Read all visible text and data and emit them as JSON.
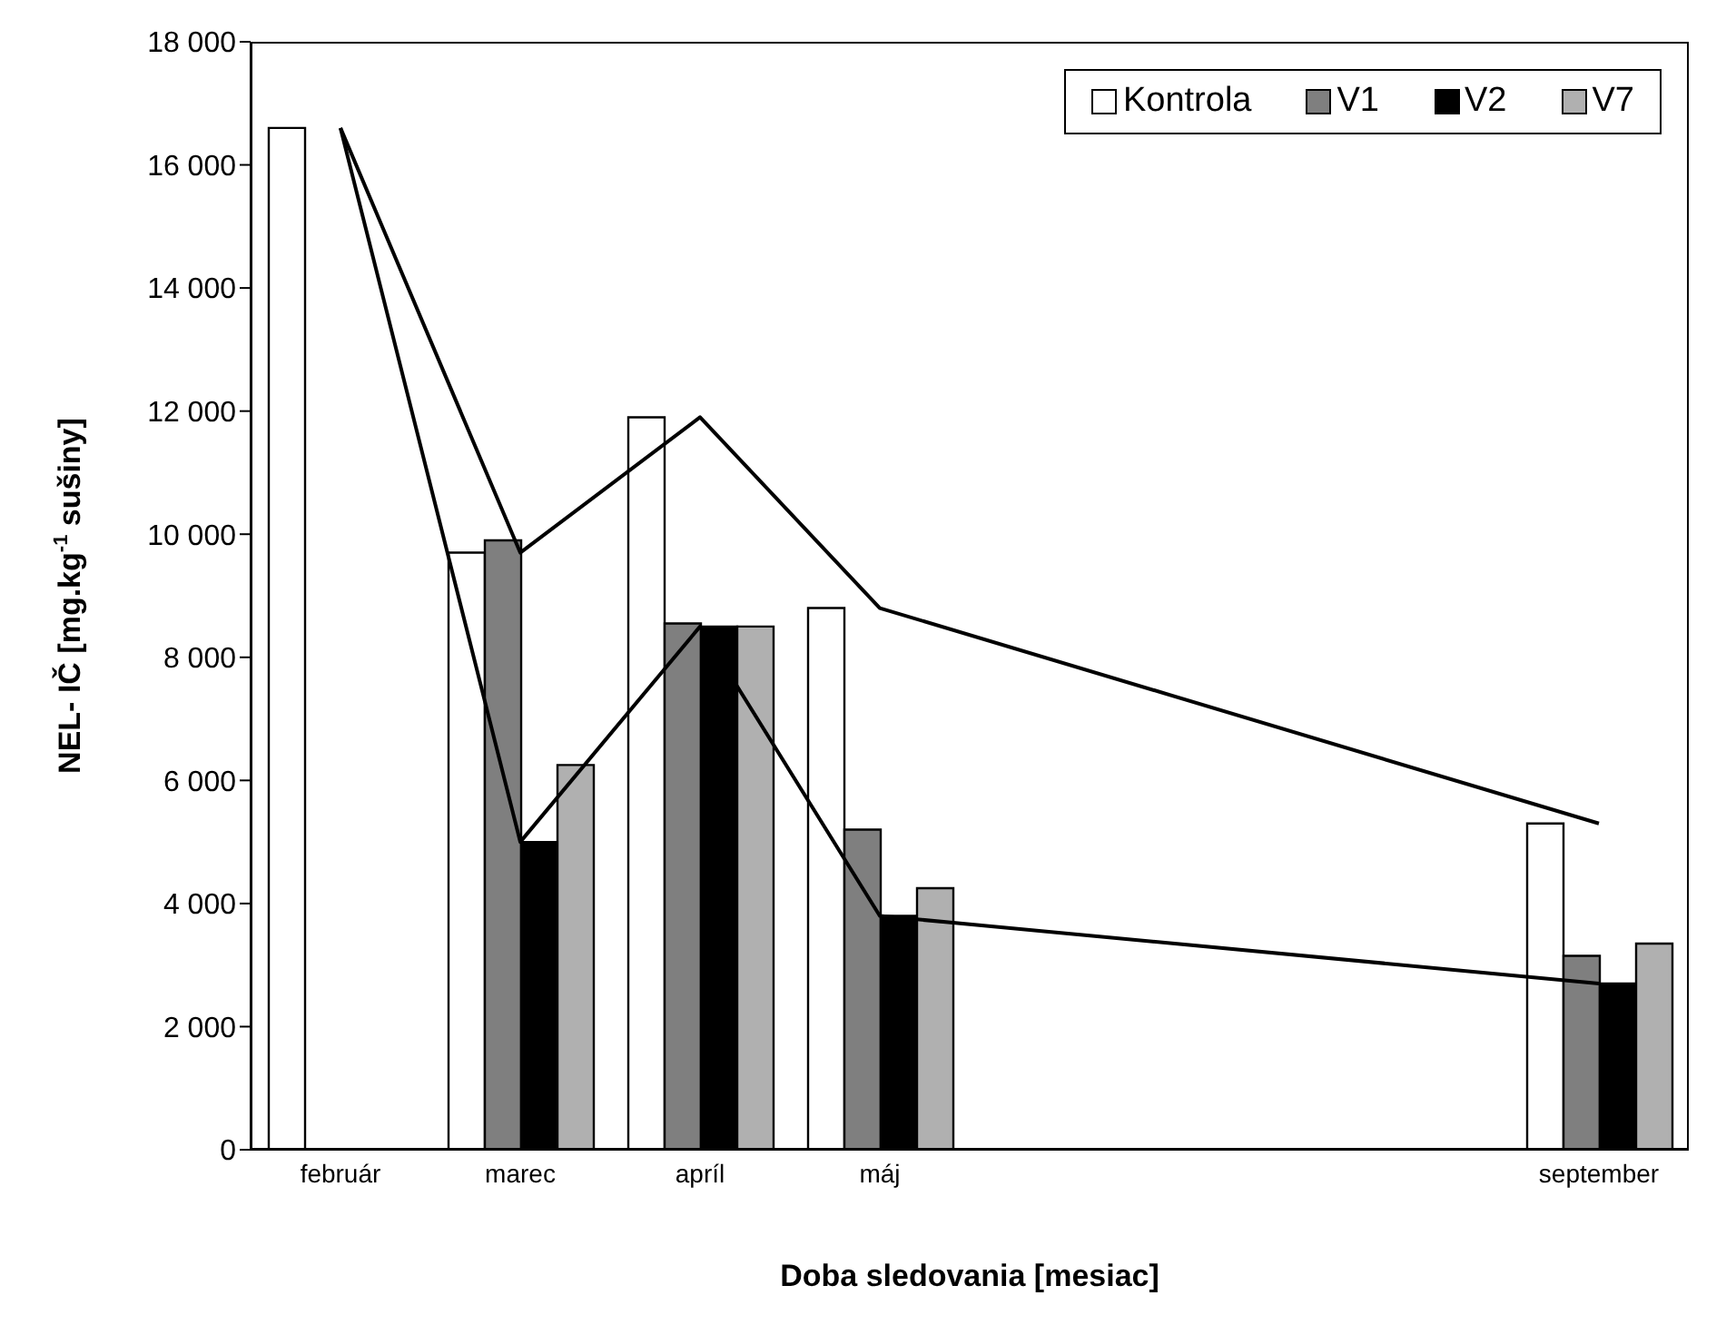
{
  "chart_data": {
    "type": "bar",
    "xlabel": "Doba sledovania [mesiac]",
    "ylabel": "NEL- IČ [mg.kg$^{-1}$ sušiny]",
    "categories": [
      "február",
      "marec",
      "apríl",
      "máj",
      null,
      null,
      null,
      "september"
    ],
    "series": [
      {
        "name": "Kontrola",
        "color": "#ffffff",
        "values": [
          16600,
          9700,
          11900,
          8800,
          null,
          null,
          null,
          5300
        ]
      },
      {
        "name": "V1",
        "color": "#7f7f7f",
        "values": [
          null,
          9900,
          8550,
          5200,
          null,
          null,
          null,
          3150
        ]
      },
      {
        "name": "V2",
        "color": "#000000",
        "values": [
          null,
          5000,
          8500,
          3800,
          null,
          null,
          null,
          2700
        ]
      },
      {
        "name": "V7",
        "color": "#b0b0b0",
        "values": [
          null,
          6250,
          8500,
          4250,
          null,
          null,
          null,
          3350
        ]
      },
      {
        "type": "line",
        "color": "#000000",
        "values": [
          16600,
          9700,
          11900,
          8800,
          null,
          null,
          null,
          5300
        ]
      },
      {
        "type": "line",
        "color": "#000000",
        "values": [
          16600,
          5000,
          8500,
          3800,
          null,
          null,
          null,
          2700
        ]
      }
    ],
    "ylim": [
      0,
      18000
    ],
    "yticks": [
      {
        "value": 0,
        "label": "0"
      },
      {
        "value": 2000,
        "label": "2 000"
      },
      {
        "value": 4000,
        "label": "4 000"
      },
      {
        "value": 6000,
        "label": "6 000"
      },
      {
        "value": 8000,
        "label": "8 000"
      },
      {
        "value": 10000,
        "label": "10 000"
      },
      {
        "value": 12000,
        "label": "12 000"
      },
      {
        "value": 14000,
        "label": "14 000"
      },
      {
        "value": 16000,
        "label": "16 000"
      },
      {
        "value": 18000,
        "label": "18 000"
      }
    ],
    "legend": "top right",
    "marker": "none",
    "grid": false
  }
}
